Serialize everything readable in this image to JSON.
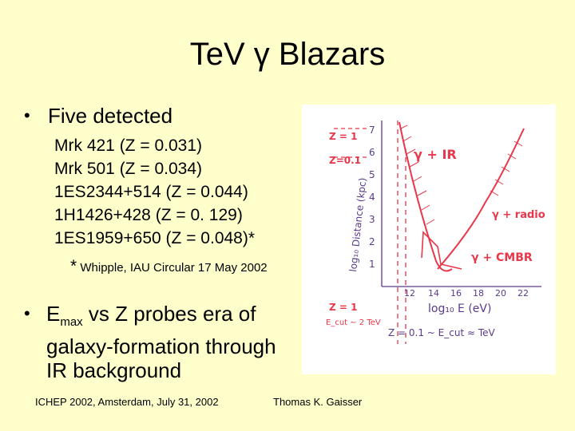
{
  "title": "TeV γ Blazars",
  "bullet1": "Five detected",
  "objects": [
    "Mrk 421 (Z = 0.031)",
    "Mrk 501 (Z = 0.034)",
    "1ES2344+514 (Z = 0.044)",
    "1H1426+428 (Z = 0. 129)",
    "1ES1959+650 (Z = 0.048)*"
  ],
  "note_star": "*",
  "note_text": "Whipple, IAU Circular 17 May 2002",
  "bullet2": {
    "e": "E",
    "sub": "max",
    "rest": " vs Z probes era of galaxy-formation through IR background"
  },
  "footer_left": "ICHEP 2002, Amsterdam, July 31, 2002",
  "footer_right": "Thomas K. Gaisser",
  "sketch": {
    "z1_label": "Z = 1",
    "z01_label": "Z=0.1",
    "y_ticks": [
      "7",
      "6",
      "5",
      "4",
      "3",
      "2",
      "1"
    ],
    "y_axis_label": "log₁₀ Distance (kpc)",
    "x_ticks": [
      "12",
      "14",
      "16",
      "18",
      "20",
      "22"
    ],
    "x_axis_label": "log₁₀ E (eV)",
    "curve_ir": "γ + IR",
    "curve_radio": "γ + radio",
    "curve_cmbr": "γ + CMBR",
    "bottom_z1": "Z = 1",
    "bottom_z1_ecut": "E_cut ~ 2 TeV",
    "bottom_z01": "Z = 0.1 ~ E_cut ≈ TeV",
    "colors": {
      "curve": "#E8374A",
      "ink": "#5A3A8C"
    }
  }
}
